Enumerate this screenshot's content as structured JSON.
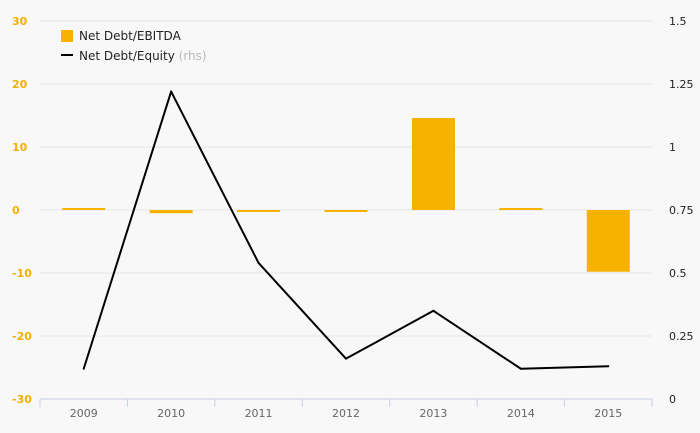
{
  "chart_data": {
    "type": "bar+line",
    "categories": [
      "2009",
      "2010",
      "2011",
      "2012",
      "2013",
      "2014",
      "2015"
    ],
    "series": [
      {
        "name": "Net Debt/EBITDA",
        "type": "bar",
        "axis": "left",
        "color": "#f7b200",
        "values": [
          0.2,
          -0.5,
          -0.3,
          -0.15,
          14.6,
          0.3,
          -9.8
        ]
      },
      {
        "name": "Net Debt/Equity",
        "name_suffix": "(rhs)",
        "type": "line",
        "axis": "right",
        "color": "#000000",
        "values": [
          0.12,
          1.22,
          0.54,
          0.16,
          0.35,
          0.12,
          0.13
        ]
      }
    ],
    "y_left": {
      "range": [
        -30,
        30
      ],
      "ticks": [
        30,
        20,
        10,
        0,
        -10,
        -20,
        -30
      ],
      "tick_labels": [
        "30",
        "20",
        "10",
        "0",
        "-10",
        "-20",
        "-30"
      ],
      "tick_color": "#f4b000"
    },
    "y_right": {
      "range": [
        0,
        1.5
      ],
      "ticks": [
        1.5,
        1.25,
        1,
        0.75,
        0.5,
        0.25,
        0
      ],
      "tick_labels": [
        "1.5",
        "1.25",
        "1",
        "0.75",
        "0.5",
        "0.25",
        "0"
      ]
    },
    "grid": true,
    "legend_position": "top-left"
  }
}
